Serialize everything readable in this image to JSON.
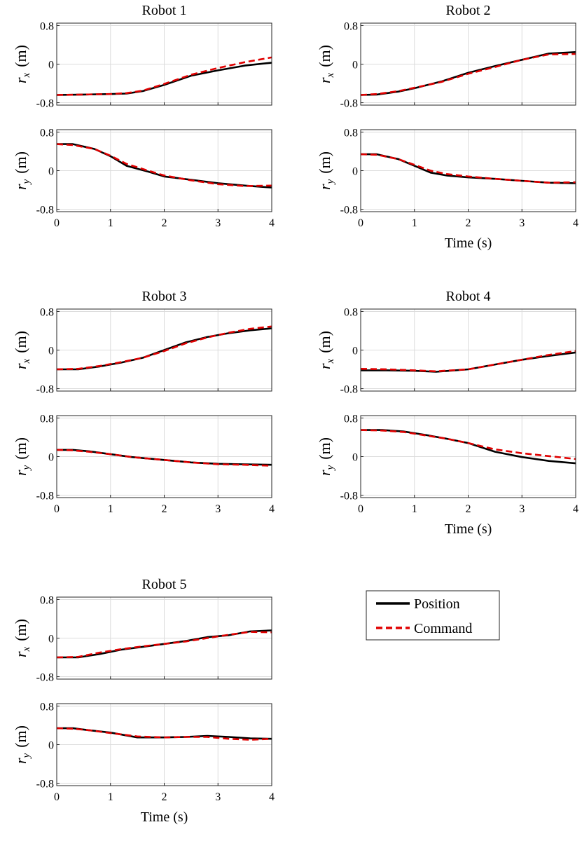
{
  "chart_data": [
    {
      "type": "line",
      "title": "Robot 1",
      "x_ticks": [
        "0",
        "1",
        "2",
        "3",
        "4"
      ],
      "xlabel": "",
      "xlim": [
        0,
        4
      ],
      "panels": [
        {
          "ylabel_symbol": "r",
          "ylabel_subscript": "x",
          "ylabel_unit": "(m)",
          "ylim": [
            -0.85,
            0.85
          ],
          "y_ticks": [
            "0.8",
            "0",
            "-0.8"
          ],
          "series": [
            {
              "name": "Position",
              "x": [
                0,
                0.5,
                1.0,
                1.3,
                1.6,
                2.0,
                2.5,
                3.0,
                3.5,
                4.0
              ],
              "y": [
                -0.64,
                -0.63,
                -0.62,
                -0.61,
                -0.56,
                -0.43,
                -0.24,
                -0.13,
                -0.03,
                0.03
              ]
            },
            {
              "name": "Command",
              "x": [
                0,
                0.5,
                1.0,
                1.3,
                1.6,
                2.0,
                2.5,
                3.0,
                3.5,
                4.0
              ],
              "y": [
                -0.64,
                -0.63,
                -0.62,
                -0.6,
                -0.55,
                -0.41,
                -0.22,
                -0.08,
                0.04,
                0.14
              ]
            }
          ]
        },
        {
          "ylabel_symbol": "r",
          "ylabel_subscript": "y",
          "ylabel_unit": "(m)",
          "ylim": [
            -0.85,
            0.85
          ],
          "y_ticks": [
            "0.8",
            "0",
            "-0.8"
          ],
          "series": [
            {
              "name": "Position",
              "x": [
                0,
                0.3,
                0.7,
                1.0,
                1.3,
                1.7,
                2.0,
                2.5,
                3.0,
                3.5,
                4.0
              ],
              "y": [
                0.55,
                0.55,
                0.45,
                0.3,
                0.1,
                -0.02,
                -0.12,
                -0.19,
                -0.26,
                -0.31,
                -0.35
              ]
            },
            {
              "name": "Command",
              "x": [
                0,
                0.3,
                0.7,
                1.0,
                1.3,
                1.7,
                2.0,
                2.5,
                3.0,
                3.5,
                4.0
              ],
              "y": [
                0.55,
                0.53,
                0.45,
                0.31,
                0.14,
                0.0,
                -0.1,
                -0.2,
                -0.28,
                -0.32,
                -0.31
              ]
            }
          ]
        }
      ]
    },
    {
      "type": "line",
      "title": "Robot 2",
      "x_ticks": [
        "0",
        "1",
        "2",
        "3",
        "4"
      ],
      "xlabel": "Time (s)",
      "xlim": [
        0,
        4
      ],
      "panels": [
        {
          "ylabel_symbol": "r",
          "ylabel_subscript": "x",
          "ylabel_unit": "(m)",
          "ylim": [
            -0.85,
            0.85
          ],
          "y_ticks": [
            "0.8",
            "0",
            "-0.8"
          ],
          "series": [
            {
              "name": "Position",
              "x": [
                0,
                0.3,
                0.7,
                1.0,
                1.5,
                2.0,
                2.5,
                3.0,
                3.5,
                4.0
              ],
              "y": [
                -0.64,
                -0.63,
                -0.57,
                -0.5,
                -0.36,
                -0.18,
                -0.04,
                0.09,
                0.22,
                0.25
              ]
            },
            {
              "name": "Command",
              "x": [
                0,
                0.3,
                0.7,
                1.0,
                1.5,
                2.0,
                2.5,
                3.0,
                3.5,
                4.0
              ],
              "y": [
                -0.64,
                -0.62,
                -0.56,
                -0.49,
                -0.37,
                -0.2,
                -0.06,
                0.09,
                0.2,
                0.21
              ]
            }
          ]
        },
        {
          "ylabel_symbol": "r",
          "ylabel_subscript": "y",
          "ylabel_unit": "(m)",
          "ylim": [
            -0.85,
            0.85
          ],
          "y_ticks": [
            "0.8",
            "0",
            "-0.8"
          ],
          "series": [
            {
              "name": "Position",
              "x": [
                0,
                0.3,
                0.7,
                1.0,
                1.3,
                1.6,
                2.0,
                2.5,
                3.0,
                3.5,
                4.0
              ],
              "y": [
                0.34,
                0.34,
                0.24,
                0.1,
                -0.04,
                -0.1,
                -0.14,
                -0.17,
                -0.21,
                -0.25,
                -0.26
              ]
            },
            {
              "name": "Command",
              "x": [
                0,
                0.3,
                0.7,
                1.0,
                1.3,
                1.6,
                2.0,
                2.5,
                3.0,
                3.5,
                4.0
              ],
              "y": [
                0.34,
                0.33,
                0.24,
                0.12,
                0.0,
                -0.07,
                -0.12,
                -0.17,
                -0.21,
                -0.25,
                -0.24
              ]
            }
          ]
        }
      ]
    },
    {
      "type": "line",
      "title": "Robot 3",
      "x_ticks": [
        "0",
        "1",
        "2",
        "3",
        "4"
      ],
      "xlabel": "",
      "xlim": [
        0,
        4
      ],
      "panels": [
        {
          "ylabel_symbol": "r",
          "ylabel_subscript": "x",
          "ylabel_unit": "(m)",
          "ylim": [
            -0.85,
            0.85
          ],
          "y_ticks": [
            "0.8",
            "0",
            "-0.8"
          ],
          "series": [
            {
              "name": "Position",
              "x": [
                0,
                0.4,
                0.8,
                1.2,
                1.6,
                2.0,
                2.4,
                2.8,
                3.2,
                3.6,
                4.0
              ],
              "y": [
                -0.4,
                -0.4,
                -0.34,
                -0.26,
                -0.16,
                0.0,
                0.16,
                0.27,
                0.35,
                0.41,
                0.45
              ]
            },
            {
              "name": "Command",
              "x": [
                0,
                0.4,
                0.8,
                1.2,
                1.6,
                2.0,
                2.4,
                2.8,
                3.2,
                3.6,
                4.0
              ],
              "y": [
                -0.4,
                -0.39,
                -0.33,
                -0.25,
                -0.16,
                -0.02,
                0.14,
                0.26,
                0.36,
                0.44,
                0.49
              ]
            }
          ]
        },
        {
          "ylabel_symbol": "r",
          "ylabel_subscript": "y",
          "ylabel_unit": "(m)",
          "ylim": [
            -0.85,
            0.85
          ],
          "y_ticks": [
            "0.8",
            "0",
            "-0.8"
          ],
          "series": [
            {
              "name": "Position",
              "x": [
                0,
                0.3,
                0.6,
                1.0,
                1.4,
                2.0,
                2.5,
                3.0,
                3.5,
                4.0
              ],
              "y": [
                0.14,
                0.14,
                0.11,
                0.05,
                -0.01,
                -0.07,
                -0.12,
                -0.15,
                -0.16,
                -0.17
              ]
            },
            {
              "name": "Command",
              "x": [
                0,
                0.3,
                0.6,
                1.0,
                1.4,
                2.0,
                2.5,
                3.0,
                3.5,
                4.0
              ],
              "y": [
                0.14,
                0.13,
                0.1,
                0.05,
                -0.01,
                -0.07,
                -0.12,
                -0.16,
                -0.17,
                -0.19
              ]
            }
          ]
        }
      ]
    },
    {
      "type": "line",
      "title": "Robot 4",
      "x_ticks": [
        "0",
        "1",
        "2",
        "3",
        "4"
      ],
      "xlabel": "Time (s)",
      "xlim": [
        0,
        4
      ],
      "panels": [
        {
          "ylabel_symbol": "r",
          "ylabel_subscript": "x",
          "ylabel_unit": "(m)",
          "ylim": [
            -0.85,
            0.85
          ],
          "y_ticks": [
            "0.8",
            "0",
            "-0.8"
          ],
          "series": [
            {
              "name": "Position",
              "x": [
                0,
                0.5,
                1.0,
                1.4,
                2.0,
                2.5,
                3.0,
                3.5,
                4.0
              ],
              "y": [
                -0.42,
                -0.42,
                -0.43,
                -0.45,
                -0.4,
                -0.3,
                -0.2,
                -0.12,
                -0.05
              ]
            },
            {
              "name": "Command",
              "x": [
                0,
                0.5,
                1.0,
                1.4,
                2.0,
                2.5,
                3.0,
                3.5,
                4.0
              ],
              "y": [
                -0.39,
                -0.4,
                -0.42,
                -0.44,
                -0.4,
                -0.3,
                -0.2,
                -0.1,
                -0.02
              ]
            }
          ]
        },
        {
          "ylabel_symbol": "r",
          "ylabel_subscript": "y",
          "ylabel_unit": "(m)",
          "ylim": [
            -0.85,
            0.85
          ],
          "y_ticks": [
            "0.8",
            "0",
            "-0.8"
          ],
          "series": [
            {
              "name": "Position",
              "x": [
                0,
                0.4,
                0.8,
                1.2,
                1.6,
                2.0,
                2.5,
                3.0,
                3.5,
                4.0
              ],
              "y": [
                0.55,
                0.55,
                0.52,
                0.45,
                0.37,
                0.28,
                0.1,
                -0.01,
                -0.09,
                -0.14
              ]
            },
            {
              "name": "Command",
              "x": [
                0,
                0.4,
                0.8,
                1.2,
                1.6,
                2.0,
                2.5,
                3.0,
                3.5,
                4.0
              ],
              "y": [
                0.55,
                0.54,
                0.51,
                0.44,
                0.37,
                0.28,
                0.15,
                0.07,
                0.01,
                -0.05
              ]
            }
          ]
        }
      ]
    },
    {
      "type": "line",
      "title": "Robot 5",
      "x_ticks": [
        "0",
        "1",
        "2",
        "3",
        "4"
      ],
      "xlabel": "Time (s)",
      "xlim": [
        0,
        4
      ],
      "panels": [
        {
          "ylabel_symbol": "r",
          "ylabel_subscript": "x",
          "ylabel_unit": "(m)",
          "ylim": [
            -0.85,
            0.85
          ],
          "y_ticks": [
            "0.8",
            "0",
            "-0.8"
          ],
          "series": [
            {
              "name": "Position",
              "x": [
                0,
                0.4,
                0.8,
                1.2,
                1.6,
                2.0,
                2.4,
                2.8,
                3.2,
                3.6,
                4.0
              ],
              "y": [
                -0.4,
                -0.4,
                -0.33,
                -0.24,
                -0.18,
                -0.12,
                -0.06,
                0.02,
                0.06,
                0.14,
                0.16
              ]
            },
            {
              "name": "Command",
              "x": [
                0,
                0.4,
                0.8,
                1.2,
                1.6,
                2.0,
                2.4,
                2.8,
                3.2,
                3.6,
                4.0
              ],
              "y": [
                -0.4,
                -0.39,
                -0.3,
                -0.23,
                -0.17,
                -0.12,
                -0.07,
                0.0,
                0.07,
                0.13,
                0.12
              ]
            }
          ]
        },
        {
          "ylabel_symbol": "r",
          "ylabel_subscript": "y",
          "ylabel_unit": "(m)",
          "ylim": [
            -0.85,
            0.85
          ],
          "y_ticks": [
            "0.8",
            "0",
            "-0.8"
          ],
          "series": [
            {
              "name": "Position",
              "x": [
                0,
                0.3,
                0.6,
                1.0,
                1.5,
                2.0,
                2.4,
                2.8,
                3.2,
                3.6,
                4.0
              ],
              "y": [
                0.34,
                0.34,
                0.3,
                0.25,
                0.15,
                0.15,
                0.16,
                0.18,
                0.16,
                0.13,
                0.12
              ]
            },
            {
              "name": "Command",
              "x": [
                0,
                0.3,
                0.6,
                1.0,
                1.5,
                2.0,
                2.4,
                2.8,
                3.2,
                3.6,
                4.0
              ],
              "y": [
                0.34,
                0.33,
                0.3,
                0.24,
                0.17,
                0.15,
                0.16,
                0.16,
                0.12,
                0.1,
                0.12
              ]
            }
          ]
        }
      ]
    }
  ],
  "legend": {
    "position": "right of Robot 5",
    "entries": [
      {
        "label": "Position",
        "color": "#000000",
        "style": "solid"
      },
      {
        "label": "Command",
        "color": "#e00000",
        "style": "dashed"
      }
    ]
  },
  "colors": {
    "position": "#000000",
    "command": "#e00000",
    "grid": "#dcdcdc"
  }
}
